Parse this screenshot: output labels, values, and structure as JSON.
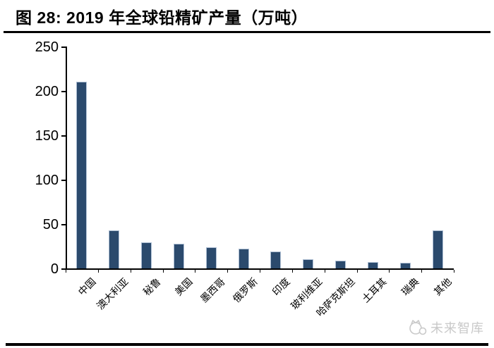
{
  "header": {
    "title": "图 28: 2019 年全球铅精矿产量（万吨）"
  },
  "watermark": {
    "brand": "未来智库"
  },
  "chart_data": {
    "type": "bar",
    "title": "2019 年全球铅精矿产量（万吨）",
    "categories": [
      "中国",
      "澳大利亚",
      "秘鲁",
      "美国",
      "墨西哥",
      "俄罗斯",
      "印度",
      "玻利维亚",
      "哈萨克斯坦",
      "土耳其",
      "瑞典",
      "其他"
    ],
    "values": [
      210,
      43,
      29,
      28,
      24,
      22,
      19,
      10,
      9,
      7,
      6,
      43
    ],
    "xlabel": "",
    "ylabel": "",
    "ylim": [
      0,
      250
    ],
    "yticks": [
      0,
      50,
      100,
      150,
      200,
      250
    ],
    "grid": false,
    "legend": false,
    "bar_color": "#2B4A6D",
    "bar_border_color": "#AEBFD4",
    "axis_color": "#000000",
    "label_rotation_deg": -45
  }
}
